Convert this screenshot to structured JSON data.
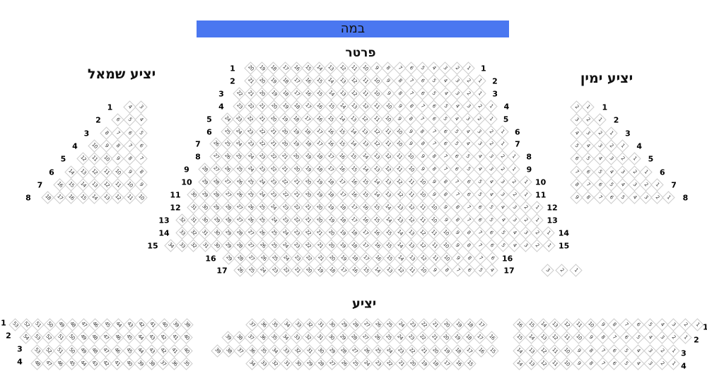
{
  "stage": {
    "label": "במה",
    "color": "#4a77f0"
  },
  "sections": {
    "parterre": {
      "title": "פרטר",
      "rows": [
        {
          "row": "1",
          "groups": [
            [
              20,
              1
            ]
          ]
        },
        {
          "row": "2",
          "groups": [
            [
              21,
              1
            ]
          ]
        },
        {
          "row": "3",
          "groups": [
            [
              22,
              1
            ]
          ]
        },
        {
          "row": "4",
          "groups": [
            [
              23,
              1
            ]
          ]
        },
        {
          "row": "5",
          "groups": [
            [
              24,
              1
            ]
          ]
        },
        {
          "row": "6",
          "groups": [
            [
              25,
              1
            ]
          ]
        },
        {
          "row": "7",
          "groups": [
            [
              26,
              1
            ]
          ]
        },
        {
          "row": "8",
          "groups": [
            [
              27,
              1
            ]
          ]
        },
        {
          "row": "9",
          "groups": [
            [
              28,
              1
            ]
          ]
        },
        {
          "row": "10",
          "groups": [
            [
              29,
              1
            ]
          ]
        },
        {
          "row": "11",
          "groups": [
            [
              30,
              1
            ]
          ]
        },
        {
          "row": "12",
          "groups": [
            [
              31,
              1
            ]
          ]
        },
        {
          "row": "13",
          "groups": [
            [
              32,
              1
            ]
          ]
        },
        {
          "row": "14",
          "groups": [
            [
              33,
              1
            ]
          ]
        },
        {
          "row": "15",
          "groups": [
            [
              34,
              1
            ]
          ]
        },
        {
          "row": "16",
          "groups": [
            [
              29,
              6
            ]
          ]
        },
        {
          "row": "17",
          "groups": [
            [
              26,
              4
            ],
            [
              3,
              1
            ]
          ]
        }
      ]
    },
    "left_balcony": {
      "title": "יציע שמאל",
      "rows": [
        {
          "row": "1",
          "groups": [
            [
              4,
              3
            ]
          ]
        },
        {
          "row": "2",
          "groups": [
            [
              6,
              4
            ]
          ]
        },
        {
          "row": "3",
          "groups": [
            [
              8,
              5
            ]
          ]
        },
        {
          "row": "4",
          "groups": [
            [
              10,
              6
            ]
          ]
        },
        {
          "row": "5",
          "groups": [
            [
              12,
              7
            ]
          ]
        },
        {
          "row": "6",
          "groups": [
            [
              14,
              8
            ]
          ]
        },
        {
          "row": "7",
          "groups": [
            [
              16,
              9
            ]
          ]
        },
        {
          "row": "8",
          "groups": [
            [
              18,
              10
            ]
          ]
        }
      ]
    },
    "right_balcony": {
      "title": "יציע ימין",
      "rows": [
        {
          "row": "1",
          "groups": [
            [
              2,
              1
            ]
          ]
        },
        {
          "row": "2",
          "groups": [
            [
              3,
              1
            ]
          ]
        },
        {
          "row": "3",
          "groups": [
            [
              4,
              1
            ]
          ]
        },
        {
          "row": "4",
          "groups": [
            [
              5,
              1
            ]
          ]
        },
        {
          "row": "5",
          "groups": [
            [
              6,
              1
            ]
          ]
        },
        {
          "row": "6",
          "groups": [
            [
              7,
              1
            ]
          ]
        },
        {
          "row": "7",
          "groups": [
            [
              8,
              1
            ]
          ]
        },
        {
          "row": "8",
          "groups": [
            [
              9,
              1
            ]
          ]
        }
      ]
    },
    "balcony": {
      "title": "יציע",
      "rows": [
        {
          "row": "1",
          "groups": [
            [
              53,
              38
            ],
            [
              37,
              17
            ],
            [
              16,
              1
            ]
          ]
        },
        {
          "row": "2",
          "groups": [
            [
              54,
              40
            ],
            [
              39,
              16
            ],
            [
              15,
              1
            ]
          ]
        },
        {
          "row": "3",
          "groups": [
            [
              53,
              40
            ],
            [
              39,
              15
            ],
            [
              14,
              1
            ]
          ]
        },
        {
          "row": "4",
          "groups": [
            [
              48,
              35
            ],
            [
              34,
              15
            ],
            [
              14,
              1
            ]
          ]
        }
      ]
    }
  }
}
